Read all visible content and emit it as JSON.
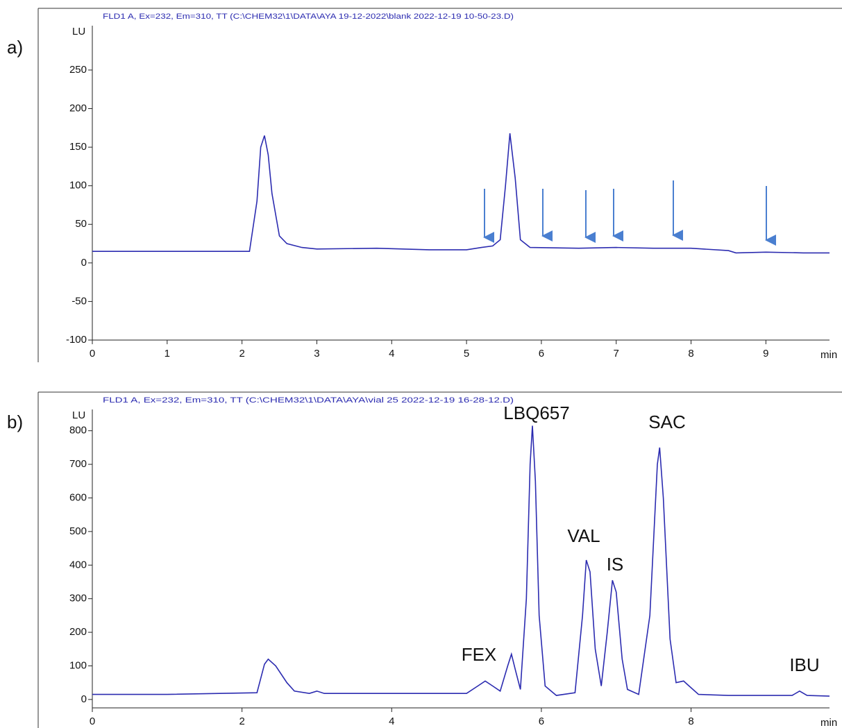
{
  "chart_data": [
    {
      "type": "line",
      "panel_label": "a)",
      "title": "FLD1 A, Ex=232, Em=310, TT (C:\\CHEM32\\1\\DATA\\AYA 19-12-2022\\blank 2022-12-19 10-50-23.D)",
      "y_label": "LU",
      "x_label": "min",
      "color": "#2b2bb0",
      "xlim": [
        0,
        9.85
      ],
      "ylim": [
        -100,
        330
      ],
      "xticks": [
        0,
        1,
        2,
        3,
        4,
        5,
        6,
        7,
        8,
        9
      ],
      "yticks": [
        -100,
        -50,
        0,
        50,
        100,
        150,
        200,
        250
      ],
      "x": [
        0,
        1,
        2.1,
        2.2,
        2.25,
        2.3,
        2.35,
        2.4,
        2.5,
        2.6,
        2.8,
        3.0,
        3.8,
        4.5,
        5.0,
        5.2,
        5.35,
        5.45,
        5.52,
        5.58,
        5.65,
        5.72,
        5.85,
        6.5,
        7.0,
        7.5,
        8.0,
        8.5,
        8.6,
        9.0,
        9.5,
        9.85
      ],
      "values": [
        15,
        15,
        15,
        80,
        150,
        165,
        140,
        90,
        35,
        25,
        20,
        18,
        19,
        17,
        17,
        20,
        22,
        30,
        100,
        168,
        110,
        30,
        20,
        19,
        20,
        19,
        19,
        16,
        13,
        14,
        13,
        13
      ]
    },
    {
      "type": "line",
      "panel_label": "b)",
      "title": "FLD1 A, Ex=232, Em=310, TT (C:\\CHEM32\\1\\DATA\\AYA\\vial 25 2022-12-19 16-28-12.D)",
      "y_label": "LU",
      "x_label": "min",
      "color": "#2b2bb0",
      "xlim": [
        0,
        9.85
      ],
      "ylim": [
        -25,
        915
      ],
      "xticks": [
        0,
        2,
        4,
        6,
        8
      ],
      "yticks": [
        0,
        100,
        200,
        300,
        400,
        500,
        600,
        700,
        800
      ],
      "peak_labels": [
        "FEX",
        "LBQ657",
        "VAL",
        "IS",
        "SAC",
        "IBU"
      ],
      "x": [
        0,
        1,
        2.2,
        2.3,
        2.35,
        2.45,
        2.6,
        2.7,
        2.9,
        3.0,
        3.1,
        4.0,
        5.0,
        5.15,
        5.25,
        5.35,
        5.45,
        5.55,
        5.6,
        5.65,
        5.72,
        5.8,
        5.85,
        5.88,
        5.92,
        5.97,
        6.05,
        6.2,
        6.45,
        6.55,
        6.6,
        6.65,
        6.72,
        6.8,
        6.88,
        6.95,
        7.0,
        7.08,
        7.15,
        7.3,
        7.45,
        7.55,
        7.58,
        7.63,
        7.72,
        7.8,
        7.9,
        7.95,
        8.1,
        8.5,
        9.35,
        9.45,
        9.55,
        9.85
      ],
      "values": [
        15,
        15,
        20,
        105,
        120,
        100,
        50,
        25,
        18,
        25,
        18,
        18,
        18,
        40,
        55,
        40,
        25,
        100,
        135,
        90,
        30,
        300,
        700,
        815,
        650,
        250,
        40,
        12,
        20,
        250,
        415,
        380,
        150,
        40,
        200,
        355,
        320,
        120,
        30,
        15,
        250,
        700,
        750,
        600,
        180,
        50,
        55,
        45,
        15,
        12,
        12,
        25,
        12,
        10
      ]
    }
  ]
}
